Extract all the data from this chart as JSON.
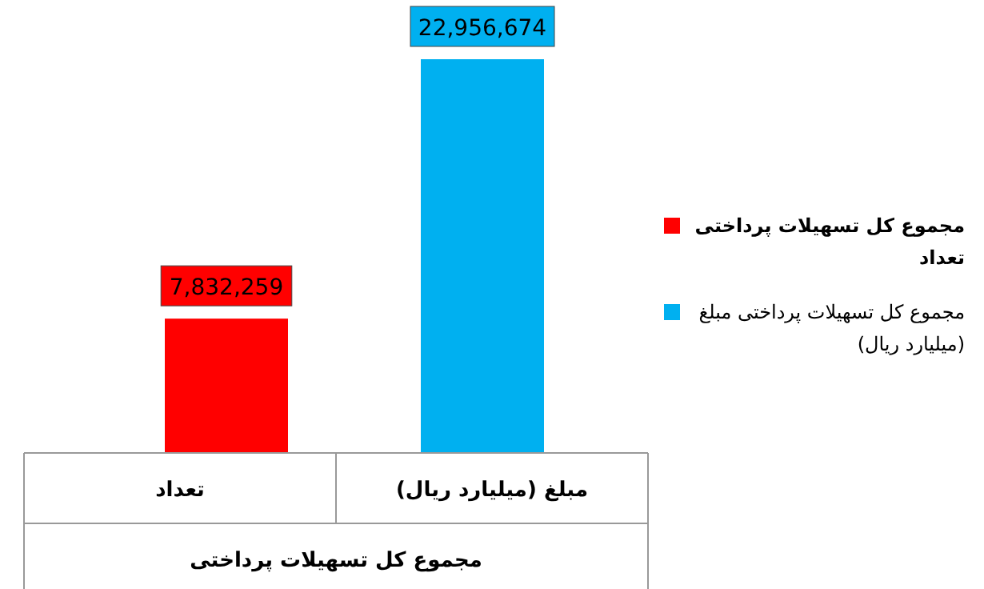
{
  "chart_data": {
    "type": "bar",
    "categories": [
      "تعداد",
      "مبلغ (میلیارد ریال)"
    ],
    "xlabel": "مجموع کل تسهیلات پرداختی",
    "series": [
      {
        "name": "مجموع کل تسهیلات پرداختی تعداد",
        "color": "#ff0000",
        "values": [
          7832259,
          null
        ],
        "value_labels": [
          "7,832,259",
          null
        ]
      },
      {
        "name": "مجموع کل تسهیلات پرداختی مبلغ (میلیارد ریال)",
        "color": "#00b0f0",
        "values": [
          null,
          22956674
        ],
        "value_labels": [
          null,
          "22,956,674"
        ]
      }
    ],
    "legend": "right"
  }
}
